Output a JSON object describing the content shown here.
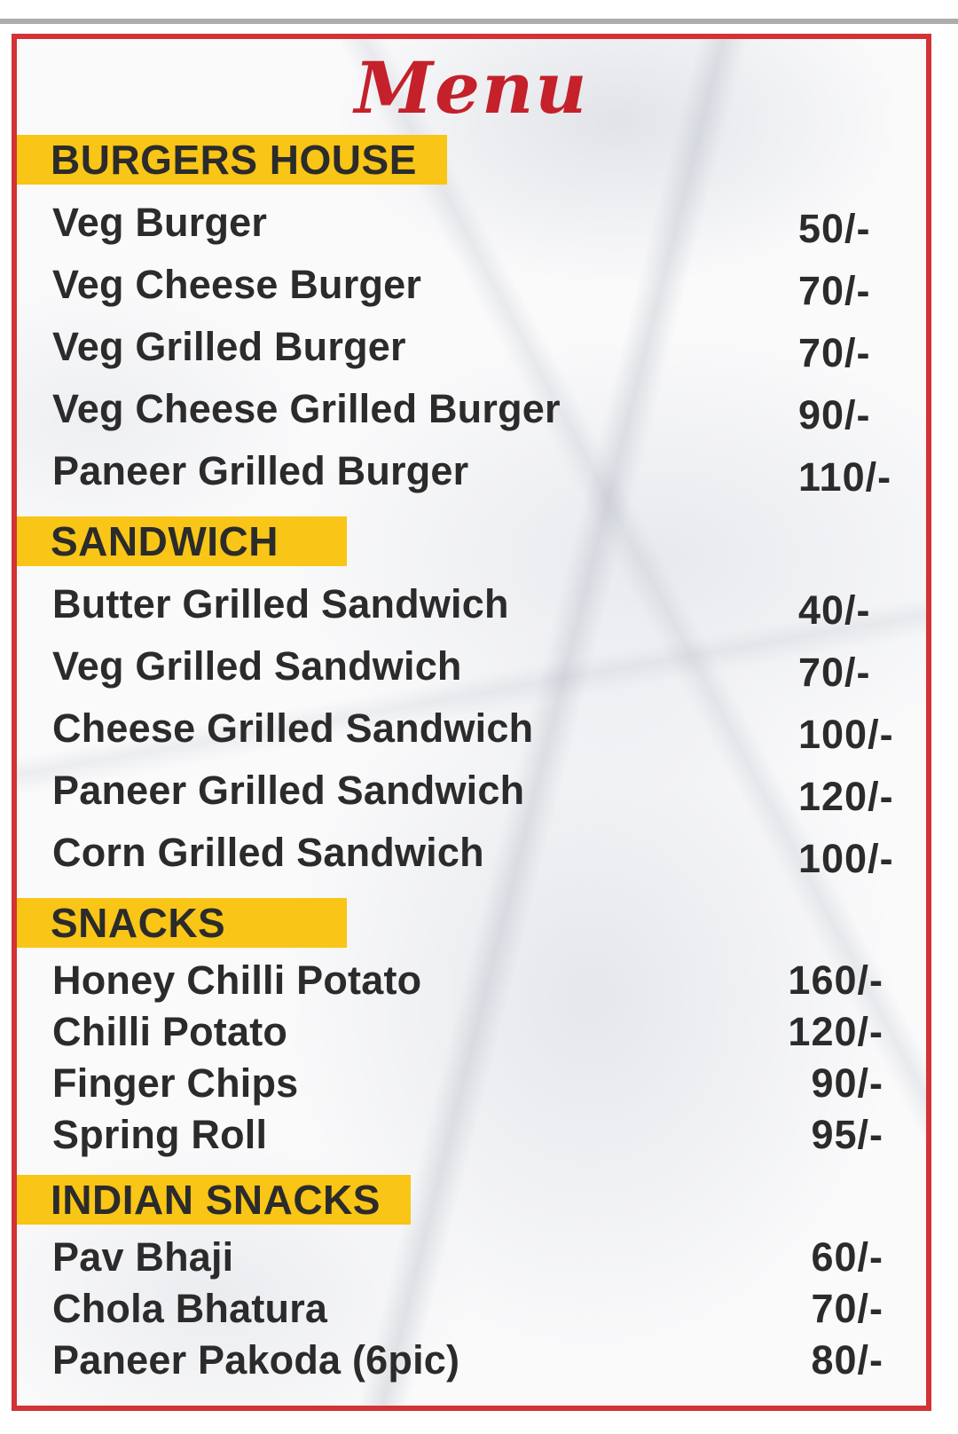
{
  "menu": {
    "title": "Menu",
    "sections": [
      {
        "label": "BURGERS HOUSE",
        "price_align": "left",
        "compact": false,
        "items": [
          {
            "name": "Veg Burger",
            "price": "50/-"
          },
          {
            "name": "Veg Cheese Burger",
            "price": "70/-"
          },
          {
            "name": "Veg Grilled Burger",
            "price": "70/-"
          },
          {
            "name": "Veg Cheese Grilled Burger",
            "price": "90/-"
          },
          {
            "name": "Paneer Grilled Burger",
            "price": "110/-"
          }
        ]
      },
      {
        "label": "SANDWICH",
        "price_align": "left",
        "compact": false,
        "items": [
          {
            "name": "Butter Grilled Sandwich",
            "price": "40/-"
          },
          {
            "name": "Veg Grilled Sandwich",
            "price": "70/-"
          },
          {
            "name": "Cheese Grilled Sandwich",
            "price": "100/-"
          },
          {
            "name": "Paneer Grilled Sandwich",
            "price": "120/-"
          },
          {
            "name": "Corn Grilled Sandwich",
            "price": "100/-"
          }
        ]
      },
      {
        "label": "SNACKS",
        "price_align": "right",
        "compact": true,
        "items": [
          {
            "name": "Honey Chilli Potato",
            "price": "160/-"
          },
          {
            "name": "Chilli Potato",
            "price": "120/-"
          },
          {
            "name": "Finger Chips",
            "price": "90/-"
          },
          {
            "name": "Spring Roll",
            "price": "95/-"
          }
        ]
      },
      {
        "label": "INDIAN SNACKS",
        "price_align": "right",
        "compact": true,
        "items": [
          {
            "name": "Pav Bhaji",
            "price": "60/-"
          },
          {
            "name": "Chola Bhatura",
            "price": "70/-"
          },
          {
            "name": "Paneer Pakoda (6pic)",
            "price": "80/-"
          }
        ]
      }
    ]
  },
  "colors": {
    "accent_red": "#D23436",
    "menu_red": "#C4212B",
    "highlight_yellow": "#F9C516",
    "text_dark": "#2B2B2B",
    "top_bar_gray": "#ACACAC"
  }
}
